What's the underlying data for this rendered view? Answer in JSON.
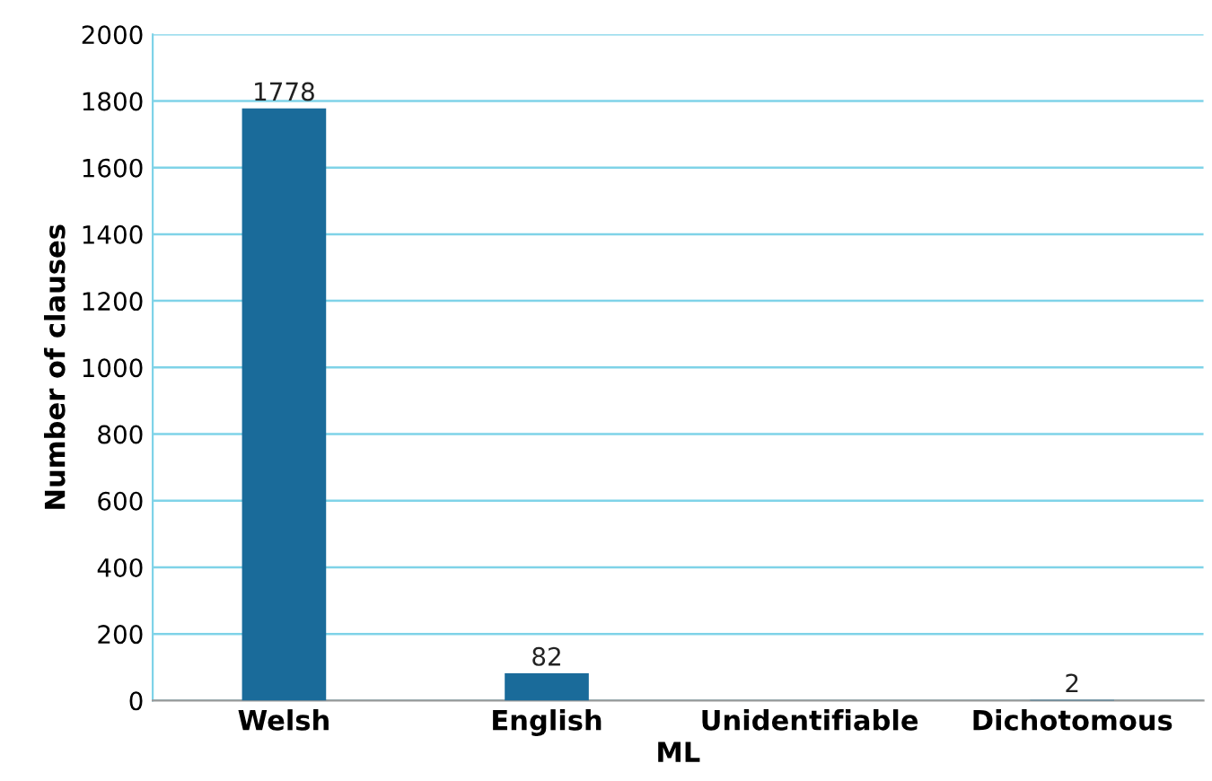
{
  "chart_data": {
    "type": "bar",
    "xlabel": "ML",
    "ylabel": "Number of clauses",
    "categories": [
      "Welsh",
      "English",
      "Unidentifiable",
      "Dichotomous"
    ],
    "values": [
      1778,
      82,
      0,
      2
    ],
    "value_labels": [
      "1778",
      "82",
      null,
      "2"
    ],
    "color": "#1a6b9a",
    "ylim": [
      0,
      2000
    ],
    "yticks": [
      0,
      200,
      400,
      600,
      800,
      1000,
      1200,
      1400,
      1600,
      1800,
      2000
    ],
    "grid": "y",
    "legend": false
  }
}
